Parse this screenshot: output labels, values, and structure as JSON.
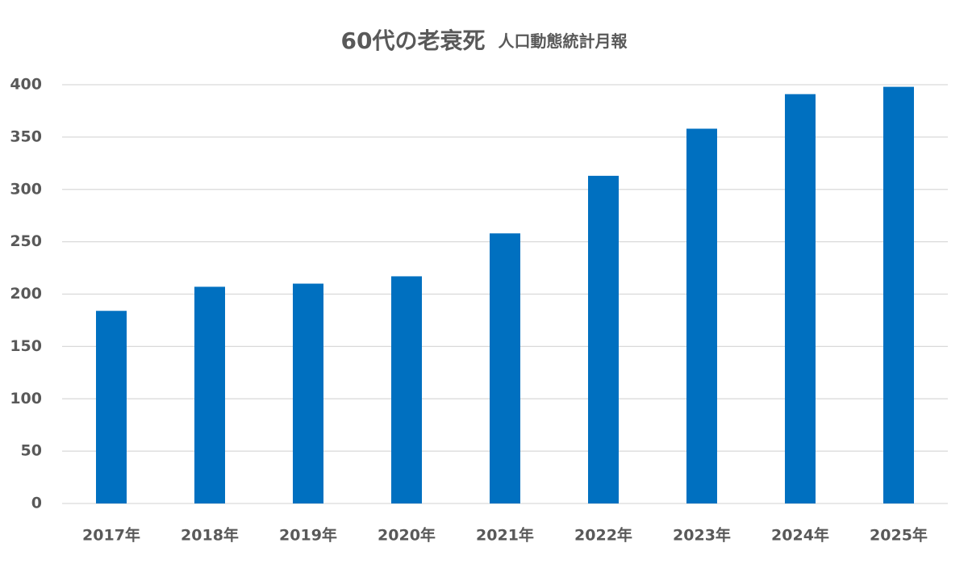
{
  "chart_data": {
    "type": "bar",
    "title": "60代の老衰死",
    "subtitle": "人口動態統計月報",
    "categories": [
      "2017年",
      "2018年",
      "2019年",
      "2020年",
      "2021年",
      "2022年",
      "2023年",
      "2024年",
      "2025年"
    ],
    "values": [
      184,
      207,
      210,
      217,
      258,
      313,
      358,
      391,
      398
    ],
    "color": "#0070c0",
    "ylim": [
      0,
      400
    ],
    "yticks": [
      0,
      50,
      100,
      150,
      200,
      250,
      300,
      350,
      400
    ],
    "grid": true
  }
}
